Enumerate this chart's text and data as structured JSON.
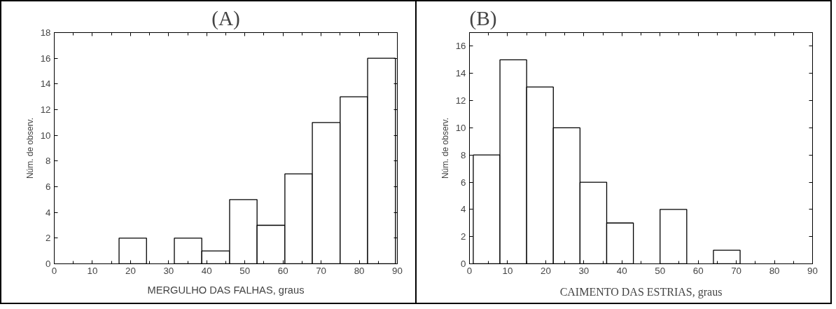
{
  "chart_data": [
    {
      "type": "histogram",
      "title": "(A)",
      "xlabel": "MERGULHO DAS FALHAS, graus",
      "ylabel": "Núm. de observ.",
      "bins": [
        17,
        24.2,
        31.5,
        38.7,
        46,
        53.2,
        60.5,
        67.7,
        75,
        82.2,
        89.5
      ],
      "values": [
        2,
        0,
        2,
        1,
        5,
        3,
        7,
        11,
        13,
        16
      ],
      "color": "#ffffff",
      "xlim": [
        0,
        90
      ],
      "xticks": [
        0,
        10,
        20,
        30,
        40,
        50,
        60,
        70,
        80,
        90
      ],
      "ylim": [
        0,
        18
      ],
      "yticks": [
        0,
        2,
        4,
        6,
        8,
        10,
        12,
        14,
        16,
        18
      ],
      "grid": false
    },
    {
      "type": "histogram",
      "title": "(B)",
      "xlabel": "CAIMENTO DAS ESTRIAS, graus",
      "ylabel": "Núm. de observ.",
      "bins": [
        1,
        8,
        15,
        22,
        29,
        36,
        43,
        50,
        57,
        64,
        71
      ],
      "values": [
        8,
        15,
        13,
        10,
        6,
        3,
        0,
        4,
        0,
        1
      ],
      "color": "#ffffff",
      "xlim": [
        0,
        90
      ],
      "xticks": [
        0,
        10,
        20,
        30,
        40,
        50,
        60,
        70,
        80,
        90
      ],
      "ylim": [
        0,
        17
      ],
      "yticks": [
        0,
        2,
        4,
        6,
        8,
        10,
        12,
        14,
        16
      ],
      "grid": false
    }
  ]
}
